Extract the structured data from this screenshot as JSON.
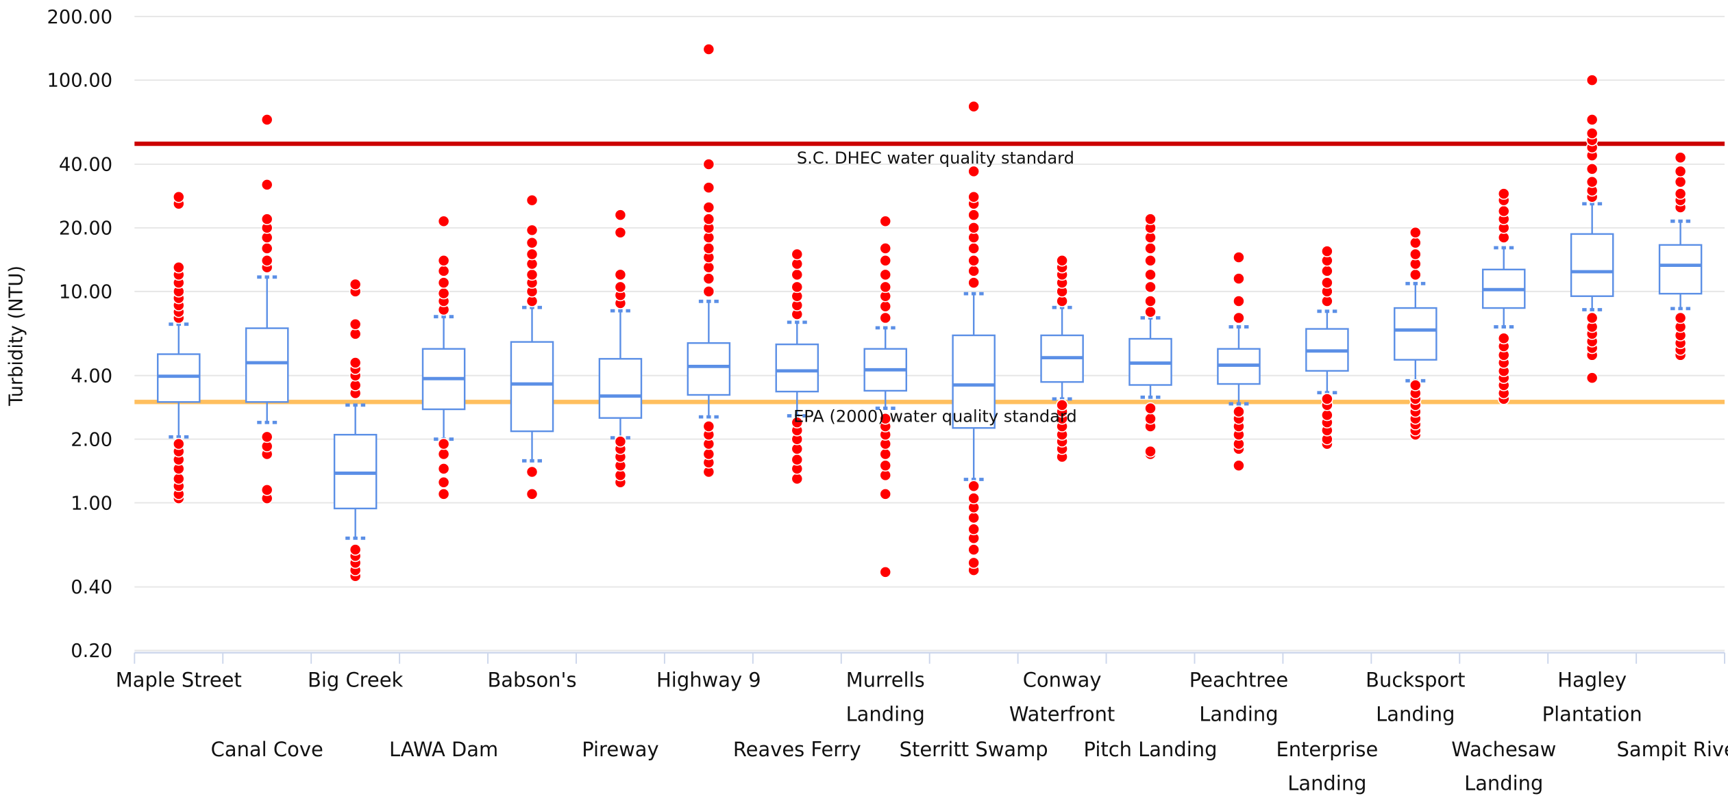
{
  "chart_data": {
    "type": "boxplot",
    "y_label": "Turbidity (NTU)",
    "y_scale": "log",
    "ylim": [
      0.2,
      200
    ],
    "yticks": [
      {
        "value": 0.2,
        "label": "0.20"
      },
      {
        "value": 0.4,
        "label": "0.40"
      },
      {
        "value": 1,
        "label": "1.00"
      },
      {
        "value": 2,
        "label": "2.00"
      },
      {
        "value": 4,
        "label": "4.00"
      },
      {
        "value": 10,
        "label": "10.00"
      },
      {
        "value": 20,
        "label": "20.00"
      },
      {
        "value": 40,
        "label": "40.00"
      },
      {
        "value": 100,
        "label": "100.00"
      },
      {
        "value": 200,
        "label": "200.00"
      }
    ],
    "grid": true,
    "box_color": "#5b8fe6",
    "outlier_color": "#ff0000",
    "categories": [
      "Maple Street",
      "Canal Cove",
      "Big Creek",
      "LAWA Dam",
      "Babson's",
      "Pireway",
      "Highway 9",
      "Reaves Ferry",
      "Murrells Landing",
      "Sterritt Swamp",
      "Conway Waterfront",
      "Pitch Landing",
      "Peachtree Landing",
      "Enterprise Landing",
      "Bucksport Landing",
      "Wachesaw Landing",
      "Hagley Plantation",
      "Sampit River"
    ],
    "low": [
      2.05,
      2.4,
      0.68,
      2.0,
      1.58,
      2.03,
      2.55,
      2.58,
      2.8,
      1.29,
      3.1,
      3.16,
      2.94,
      3.32,
      3.78,
      6.8,
      8.2,
      8.3
    ],
    "q1": [
      3.0,
      3.0,
      0.94,
      2.77,
      2.18,
      2.52,
      3.24,
      3.36,
      3.39,
      2.26,
      3.73,
      3.61,
      3.65,
      4.21,
      4.75,
      8.35,
      9.5,
      9.76
    ],
    "median": [
      3.97,
      4.6,
      1.38,
      3.87,
      3.65,
      3.2,
      4.42,
      4.21,
      4.26,
      3.61,
      4.86,
      4.58,
      4.48,
      5.23,
      6.57,
      10.2,
      12.4,
      13.3
    ],
    "q3": [
      5.05,
      6.7,
      2.1,
      5.35,
      5.77,
      4.8,
      5.7,
      5.62,
      5.35,
      6.2,
      6.2,
      5.97,
      5.35,
      6.65,
      8.35,
      12.7,
      18.7,
      16.6
    ],
    "high": [
      7.0,
      11.7,
      2.9,
      7.6,
      8.4,
      8.1,
      8.98,
      7.15,
      6.73,
      9.76,
      8.4,
      7.5,
      6.8,
      8.06,
      10.9,
      16.1,
      26,
      21.5
    ],
    "outliers": [
      [
        1.05,
        1.1,
        1.2,
        1.3,
        1.45,
        1.6,
        1.75,
        1.9,
        7.5,
        8,
        8.6,
        9.3,
        10,
        11,
        12,
        13,
        26,
        28
      ],
      [
        1.05,
        1.15,
        1.7,
        1.85,
        2.05,
        13,
        14,
        16,
        18,
        20,
        22,
        32,
        65
      ],
      [
        0.45,
        0.48,
        0.52,
        0.56,
        0.6,
        3.3,
        3.6,
        4,
        4.3,
        4.6,
        6.3,
        7,
        10,
        10.8
      ],
      [
        1.1,
        1.25,
        1.45,
        1.7,
        1.9,
        8.2,
        9,
        9.8,
        11,
        12.5,
        14,
        21.5
      ],
      [
        1.1,
        1.4,
        9,
        10,
        11,
        12,
        13.5,
        15,
        17,
        19.5,
        27
      ],
      [
        1.25,
        1.35,
        1.5,
        1.65,
        1.8,
        1.95,
        8.8,
        9.6,
        10.5,
        12,
        19,
        23
      ],
      [
        1.4,
        1.55,
        1.7,
        1.9,
        2.1,
        2.3,
        10,
        11.5,
        13,
        14.5,
        16,
        18,
        20,
        22,
        25,
        31,
        40,
        140
      ],
      [
        1.3,
        1.45,
        1.6,
        1.8,
        2,
        2.2,
        2.4,
        7.8,
        8.6,
        9.5,
        10.5,
        12,
        13.5,
        15
      ],
      [
        0.47,
        1.1,
        1.35,
        1.5,
        1.7,
        1.9,
        2.1,
        2.3,
        2.5,
        7.5,
        8.5,
        9.5,
        10.5,
        12,
        14,
        16,
        21.5
      ],
      [
        0.48,
        0.52,
        0.6,
        0.68,
        0.75,
        0.85,
        0.95,
        1.05,
        1.2,
        11,
        12.5,
        14,
        16,
        18,
        20,
        23,
        26,
        28,
        37,
        75
      ],
      [
        1.65,
        1.8,
        1.95,
        2.1,
        2.3,
        2.5,
        2.7,
        2.9,
        9,
        10,
        11,
        12,
        13,
        14
      ],
      [
        1.7,
        1.75,
        2.3,
        2.5,
        2.8,
        8,
        9,
        10.5,
        12,
        14,
        16,
        18,
        20,
        22
      ],
      [
        1.5,
        1.8,
        1.9,
        2.1,
        2.3,
        2.5,
        2.7,
        7.5,
        9,
        11.5,
        14.5
      ],
      [
        1.9,
        2,
        2.2,
        2.4,
        2.6,
        2.9,
        3.1,
        9,
        10,
        11,
        12.5,
        14,
        15.5
      ],
      [
        2.1,
        2.2,
        2.35,
        2.5,
        2.7,
        2.9,
        3.1,
        3.3,
        3.6,
        12,
        13.5,
        15,
        17,
        19
      ],
      [
        3.1,
        3.3,
        3.6,
        3.9,
        4.2,
        4.6,
        5,
        5.5,
        6,
        18,
        20,
        22,
        24,
        27,
        29
      ],
      [
        3.9,
        5,
        5.4,
        5.8,
        6.3,
        6.8,
        7.5,
        28,
        30,
        33,
        38,
        44,
        48,
        52,
        56,
        65,
        100
      ],
      [
        5,
        5.3,
        5.7,
        6.2,
        6.8,
        7.5,
        25,
        27,
        29,
        33,
        37,
        43
      ]
    ],
    "plot_lines": [
      {
        "value": 50,
        "label": "S.C. DHEC water quality standard",
        "color": "#cc0000"
      },
      {
        "value": 3,
        "label": "EPA (2000) water quality standard",
        "color": "#ffbf5e"
      }
    ]
  }
}
